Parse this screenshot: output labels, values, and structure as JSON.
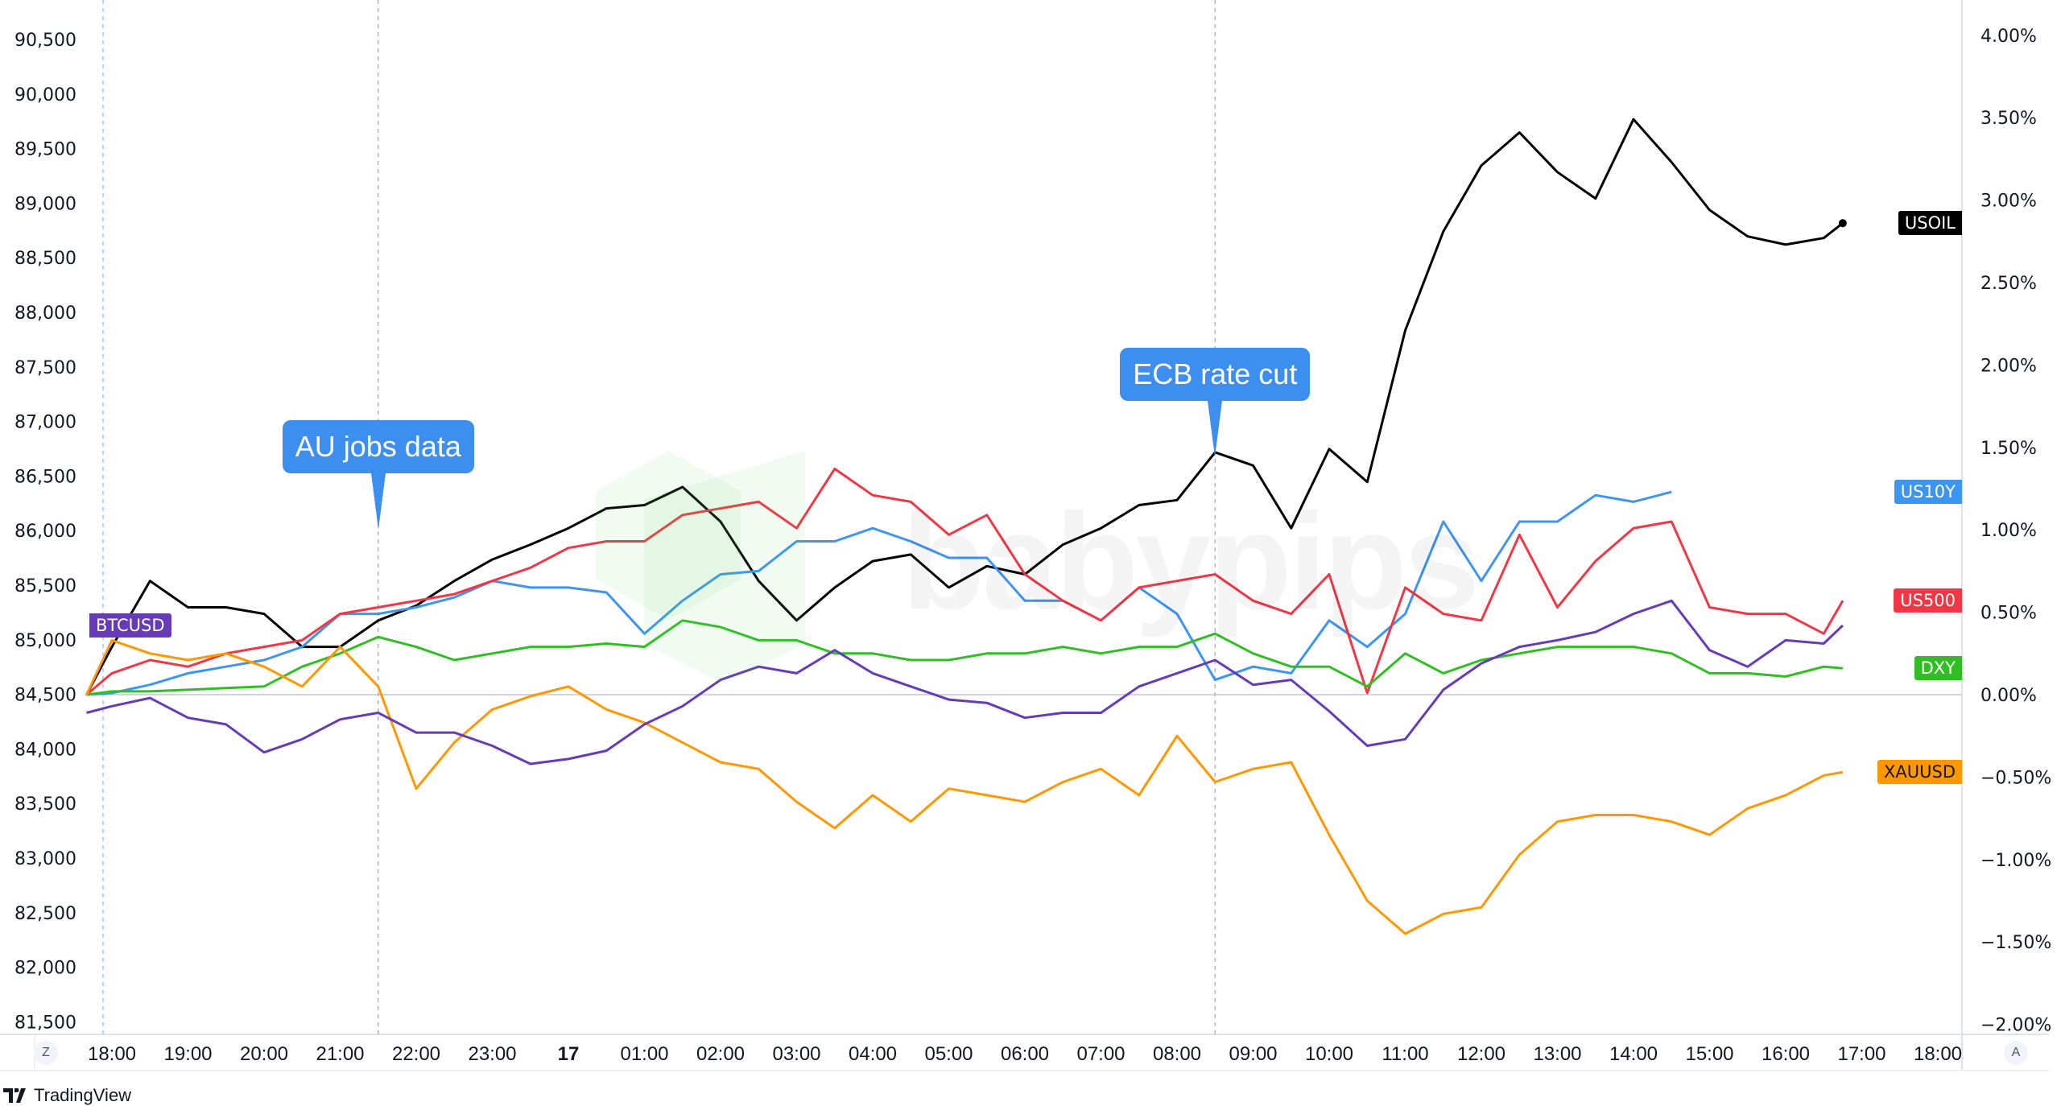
{
  "chart_data": {
    "type": "line",
    "title": "",
    "xlabel": "",
    "ylabel": "",
    "left_axis": {
      "ticks": [
        90500,
        90000,
        89500,
        89000,
        88500,
        88000,
        87500,
        87000,
        86500,
        86000,
        85500,
        85000,
        84500,
        84000,
        83500,
        83000,
        82500,
        82000,
        81500
      ],
      "tick_labels": [
        "90,500",
        "90,000",
        "89,500",
        "89,000",
        "88,500",
        "88,000",
        "87,500",
        "87,000",
        "86,500",
        "86,000",
        "85,500",
        "85,000",
        "84,500",
        "84,000",
        "83,500",
        "83,000",
        "82,500",
        "82,000",
        "81,500"
      ],
      "ylim": [
        81500,
        90500
      ]
    },
    "right_axis": {
      "ticks": [
        4,
        3.5,
        3,
        2.5,
        2,
        1.5,
        1,
        0.5,
        0,
        -0.5,
        -1,
        -1.5,
        -2
      ],
      "tick_labels": [
        "4.00%",
        "3.50%",
        "3.00%",
        "2.50%",
        "2.00%",
        "1.50%",
        "1.00%",
        "0.50%",
        "0.00%",
        "−0.50%",
        "−1.00%",
        "−1.50%",
        "−2.00%"
      ],
      "unit": "%",
      "ylim": [
        -2,
        4
      ]
    },
    "x_tick_labels": [
      "18:00",
      "19:00",
      "20:00",
      "21:00",
      "22:00",
      "23:00",
      "17",
      "01:00",
      "02:00",
      "03:00",
      "04:00",
      "05:00",
      "06:00",
      "07:00",
      "08:00",
      "09:00",
      "10:00",
      "11:00",
      "12:00",
      "13:00",
      "14:00",
      "15:00",
      "16:00",
      "17:00",
      "18:00"
    ],
    "x": [
      "16 17:40",
      "16 18:00",
      "16 18:30",
      "16 19:00",
      "16 19:30",
      "16 20:00",
      "16 20:30",
      "16 21:00",
      "16 21:30",
      "16 22:00",
      "16 22:30",
      "16 23:00",
      "16 23:30",
      "17 00:00",
      "17 00:30",
      "17 01:00",
      "17 01:30",
      "17 02:00",
      "17 02:30",
      "17 03:00",
      "17 03:30",
      "17 04:00",
      "17 04:30",
      "17 05:00",
      "17 05:30",
      "17 06:00",
      "17 06:30",
      "17 07:00",
      "17 07:30",
      "17 08:00",
      "17 08:30",
      "17 09:00",
      "17 09:30",
      "17 10:00",
      "17 10:30",
      "17 11:00",
      "17 11:30",
      "17 12:00",
      "17 12:30",
      "17 13:00",
      "17 13:30",
      "17 14:00",
      "17 14:30",
      "17 15:00",
      "17 15:30",
      "17 16:00",
      "17 16:30",
      "17 16:45"
    ],
    "series": [
      {
        "name": "USOIL",
        "color": "#000000",
        "values": [
          0,
          0.29,
          0.69,
          0.53,
          0.53,
          0.49,
          0.29,
          0.29,
          0.45,
          0.54,
          0.69,
          0.82,
          0.91,
          1.01,
          1.13,
          1.15,
          1.26,
          1.05,
          0.69,
          0.45,
          0.65,
          0.81,
          0.85,
          0.65,
          0.78,
          0.73,
          0.91,
          1.01,
          1.15,
          1.18,
          1.47,
          1.39,
          1.01,
          1.49,
          1.29,
          2.21,
          2.81,
          3.21,
          3.41,
          3.17,
          3.01,
          3.49,
          3.23,
          2.94,
          2.78,
          2.73,
          2.77,
          2.86
        ]
      },
      {
        "name": "US10Y",
        "color": "#3d95f2",
        "values": [
          0,
          0.01,
          0.06,
          0.13,
          0.17,
          0.21,
          0.29,
          0.49,
          0.49,
          0.53,
          0.59,
          0.69,
          0.65,
          0.65,
          0.62,
          0.37,
          0.57,
          0.73,
          0.75,
          0.93,
          0.93,
          1.01,
          0.93,
          0.83,
          0.83,
          0.57,
          0.57,
          0.45,
          0.65,
          0.49,
          0.09,
          0.17,
          0.13,
          0.45,
          0.29,
          0.49,
          1.05,
          0.69,
          1.05,
          1.05,
          1.21,
          1.17,
          1.23,
          null,
          null,
          null,
          null,
          null
        ]
      },
      {
        "name": "US500",
        "color": "#f23645",
        "values": [
          0,
          0.13,
          0.21,
          0.17,
          0.25,
          0.29,
          0.33,
          0.49,
          0.53,
          0.57,
          0.61,
          0.69,
          0.77,
          0.89,
          0.93,
          0.93,
          1.09,
          1.13,
          1.17,
          1.01,
          1.37,
          1.21,
          1.17,
          0.97,
          1.09,
          0.73,
          0.57,
          0.45,
          0.65,
          0.69,
          0.73,
          0.57,
          0.49,
          0.73,
          0.01,
          0.65,
          0.49,
          0.45,
          0.97,
          0.53,
          0.81,
          1.01,
          1.05,
          0.53,
          0.49,
          0.49,
          0.37,
          0.57
        ]
      },
      {
        "name": "DXY",
        "color": "#2fbf23",
        "values": [
          0,
          0.02,
          0.02,
          0.03,
          0.04,
          0.05,
          0.17,
          0.25,
          0.35,
          0.29,
          0.21,
          0.25,
          0.29,
          0.29,
          0.31,
          0.29,
          0.45,
          0.41,
          0.33,
          0.33,
          0.25,
          0.25,
          0.21,
          0.21,
          0.25,
          0.25,
          0.29,
          0.25,
          0.29,
          0.29,
          0.37,
          0.25,
          0.17,
          0.17,
          0.05,
          0.25,
          0.13,
          0.21,
          0.25,
          0.29,
          0.29,
          0.29,
          0.25,
          0.13,
          0.13,
          0.11,
          0.17,
          0.16
        ]
      },
      {
        "name": "XAUUSD",
        "color": "#ff9800",
        "values": [
          0,
          0.33,
          0.25,
          0.21,
          0.25,
          0.17,
          0.05,
          0.29,
          0.05,
          -0.57,
          -0.29,
          -0.09,
          -0.01,
          0.05,
          -0.09,
          -0.17,
          -0.29,
          -0.41,
          -0.45,
          -0.65,
          -0.81,
          -0.61,
          -0.77,
          -0.57,
          -0.61,
          -0.65,
          -0.53,
          -0.45,
          -0.61,
          -0.25,
          -0.53,
          -0.45,
          -0.41,
          -0.85,
          -1.25,
          -1.45,
          -1.33,
          -1.29,
          -0.97,
          -0.77,
          -0.73,
          -0.73,
          -0.77,
          -0.85,
          -0.69,
          -0.61,
          -0.49,
          -0.47
        ]
      },
      {
        "name": "BTCUSD",
        "color": "#673ab7",
        "values": [
          -0.11,
          -0.07,
          -0.02,
          -0.14,
          -0.18,
          -0.35,
          -0.27,
          -0.15,
          -0.11,
          -0.23,
          -0.23,
          -0.31,
          -0.42,
          -0.39,
          -0.34,
          -0.18,
          -0.07,
          0.09,
          0.17,
          0.13,
          0.27,
          0.13,
          0.05,
          -0.03,
          -0.05,
          -0.14,
          -0.11,
          -0.11,
          0.05,
          0.13,
          0.21,
          0.06,
          0.09,
          -0.1,
          -0.31,
          -0.27,
          0.03,
          0.19,
          0.29,
          0.33,
          0.38,
          0.49,
          0.57,
          0.27,
          0.17,
          0.33,
          0.31,
          0.42
        ]
      }
    ],
    "annotations": [
      {
        "text": "AU jobs data",
        "time": "16 21:30",
        "color": "#3d8fef"
      },
      {
        "text": "ECB rate cut",
        "time": "17 08:30",
        "color": "#3d8fef"
      }
    ],
    "event_lines": [
      "16 17:53",
      "16 21:30",
      "17 08:30"
    ],
    "grid": false,
    "legend": "none"
  },
  "ui": {
    "scale_button_left": "Z",
    "scale_button_right": "A",
    "logo": "TradingView",
    "watermark": "babypips"
  }
}
